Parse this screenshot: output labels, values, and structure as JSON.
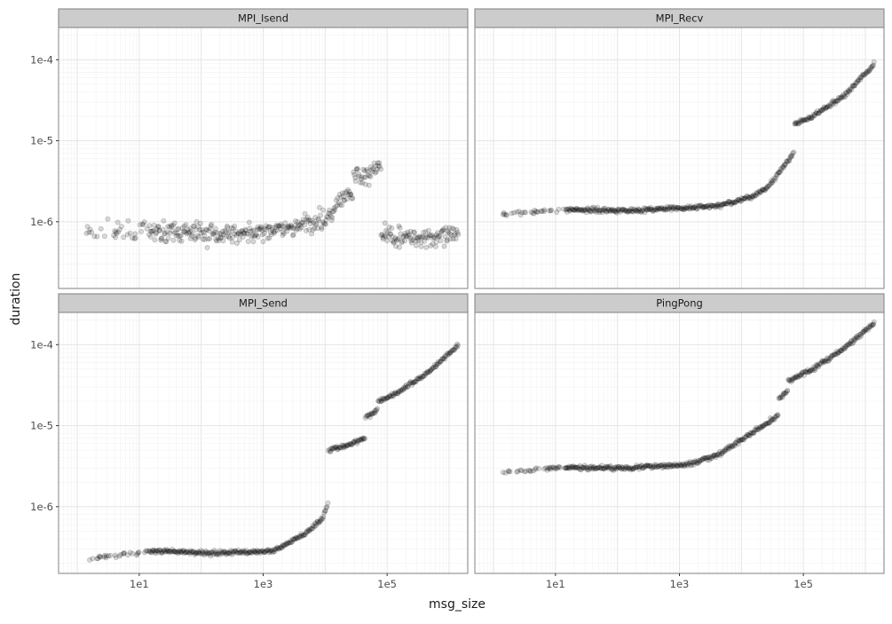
{
  "chart_data": {
    "type": "scatter",
    "layout": "facet-grid-2x2",
    "xlabel": "msg_size",
    "ylabel": "duration",
    "x_scale": "log10",
    "y_scale": "log10",
    "xlim": [
      0.5,
      2000000
    ],
    "ylim": [
      1.5e-07,
      0.00025
    ],
    "x_ticks": [
      10,
      1000,
      100000
    ],
    "x_tick_labels": [
      "1e1",
      "1e3",
      "1e5"
    ],
    "y_ticks": [
      1e-06,
      1e-05,
      0.0001
    ],
    "y_tick_labels": [
      "1e-6",
      "1e-5",
      "1e-4"
    ],
    "grid": true,
    "point_color": "#000000",
    "point_alpha": 0.15,
    "strip_fill": "#cccccc",
    "panel_border": "#7f7f7f",
    "facets": [
      {
        "title": "MPI_Isend",
        "note_shape": "log-x segments of [log10(msg_size), log10(duration)]; points scattered along each",
        "segments": [
          [
            [
              0,
              -6.12
            ],
            [
              1.0,
              -6.12
            ],
            [
              2.0,
              -6.15
            ],
            [
              3.0,
              -6.12
            ],
            [
              3.5,
              -6.05
            ],
            [
              3.9,
              -5.95
            ],
            [
              4.05,
              -5.8
            ]
          ],
          [
            [
              4.05,
              -5.75
            ],
            [
              4.3,
              -5.65
            ]
          ],
          [
            [
              4.3,
              -5.45
            ],
            [
              4.6,
              -5.4
            ],
            [
              4.75,
              -5.3
            ]
          ],
          [
            [
              4.75,
              -6.15
            ],
            [
              5.2,
              -6.2
            ],
            [
              6.0,
              -6.18
            ]
          ]
        ]
      },
      {
        "title": "MPI_Recv",
        "segments": [
          [
            [
              0,
              -5.9
            ],
            [
              1.0,
              -5.85
            ],
            [
              2.0,
              -5.86
            ],
            [
              3.0,
              -5.83
            ],
            [
              3.5,
              -5.8
            ],
            [
              4.0,
              -5.7
            ],
            [
              4.3,
              -5.55
            ],
            [
              4.5,
              -5.35
            ],
            [
              4.7,
              -5.15
            ]
          ],
          [
            [
              4.7,
              -4.8
            ],
            [
              5.0,
              -4.7
            ],
            [
              5.5,
              -4.45
            ],
            [
              6.0,
              -4.05
            ]
          ]
        ]
      },
      {
        "title": "MPI_Send",
        "segments": [
          [
            [
              0,
              -6.65
            ],
            [
              1.0,
              -6.55
            ],
            [
              2.0,
              -6.57
            ],
            [
              3.0,
              -6.55
            ],
            [
              3.5,
              -6.35
            ],
            [
              3.8,
              -6.15
            ],
            [
              3.9,
              -5.95
            ]
          ],
          [
            [
              3.9,
              -5.3
            ],
            [
              4.2,
              -5.25
            ],
            [
              4.5,
              -5.15
            ]
          ],
          [
            [
              4.5,
              -4.9
            ],
            [
              4.7,
              -4.8
            ]
          ],
          [
            [
              4.7,
              -4.7
            ],
            [
              5.0,
              -4.6
            ],
            [
              5.5,
              -4.35
            ],
            [
              6.0,
              -4.0
            ]
          ]
        ]
      },
      {
        "title": "PingPong",
        "segments": [
          [
            [
              0,
              -5.58
            ],
            [
              1.0,
              -5.52
            ],
            [
              2.0,
              -5.52
            ],
            [
              3.0,
              -5.48
            ],
            [
              3.5,
              -5.35
            ],
            [
              3.9,
              -5.15
            ],
            [
              4.2,
              -5.0
            ],
            [
              4.45,
              -4.87
            ]
          ],
          [
            [
              4.45,
              -4.68
            ],
            [
              4.6,
              -4.57
            ]
          ],
          [
            [
              4.6,
              -4.45
            ],
            [
              5.0,
              -4.3
            ],
            [
              5.5,
              -4.05
            ],
            [
              6.0,
              -3.73
            ]
          ]
        ]
      }
    ]
  }
}
